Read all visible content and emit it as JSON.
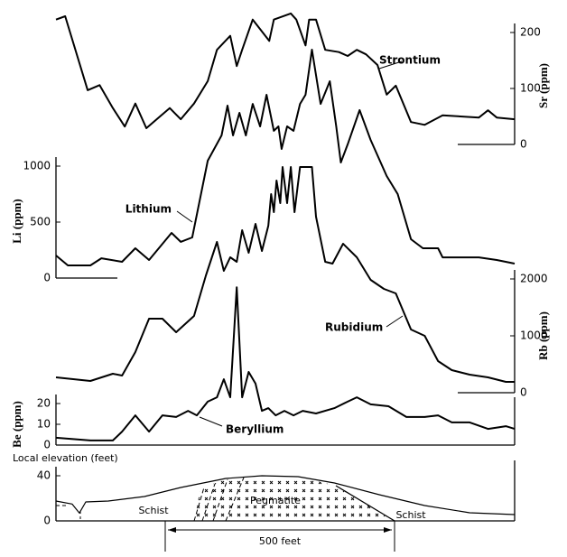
{
  "chart_data": [
    {
      "type": "line",
      "y_label": "Sr (ppm)",
      "y_axis": "right",
      "x": [
        0,
        20,
        69,
        95,
        124,
        150,
        173,
        197,
        248,
        272,
        301,
        331,
        351,
        380,
        394,
        406,
        429,
        465,
        475,
        512,
        524,
        544,
        552,
        567,
        587,
        617,
        636,
        656,
        676,
        701,
        721,
        741,
        774,
        804,
        843,
        922,
        942,
        961,
        1000
      ],
      "xlim": [
        0,
        1000
      ],
      "ylim": [
        0,
        240
      ],
      "yticks": [
        0,
        100,
        200
      ],
      "series": [
        {
          "name": "Strontium",
          "color": "#000000",
          "values": [
            223,
            229,
            97,
            106,
            65,
            32,
            73,
            29,
            65,
            45,
            73,
            113,
            169,
            194,
            140,
            169,
            223,
            185,
            223,
            234,
            223,
            177,
            223,
            223,
            169,
            165,
            158,
            169,
            161,
            142,
            89,
            105,
            40,
            35,
            52,
            48,
            61,
            48,
            45
          ]
        }
      ]
    },
    {
      "type": "line",
      "y_label": "Li (ppm)",
      "y_axis": "left",
      "x": [
        0,
        26,
        75,
        99,
        144,
        173,
        203,
        252,
        272,
        297,
        331,
        361,
        374,
        386,
        400,
        414,
        429,
        445,
        459,
        475,
        485,
        492,
        504,
        518,
        532,
        544,
        558,
        577,
        597,
        611,
        621,
        636,
        662,
        686,
        721,
        745,
        774,
        800,
        833,
        843,
        922,
        961,
        1000
      ],
      "xlim": [
        0,
        1000
      ],
      "ylim": [
        0,
        2100
      ],
      "yticks": [
        0,
        500,
        1000
      ],
      "series": [
        {
          "name": "Lithium",
          "color": "#000000",
          "values": [
            202,
            113,
            113,
            177,
            145,
            266,
            161,
            403,
            323,
            363,
            1048,
            1274,
            1540,
            1274,
            1476,
            1274,
            1556,
            1355,
            1637,
            1315,
            1355,
            1153,
            1355,
            1315,
            1556,
            1637,
            2040,
            1556,
            1758,
            1355,
            1032,
            1194,
            1500,
            1234,
            911,
            750,
            347,
            266,
            266,
            185,
            185,
            161,
            129
          ]
        }
      ]
    },
    {
      "type": "line",
      "y_label": "Rb (ppm)",
      "y_axis": "right",
      "x": [
        0,
        75,
        124,
        144,
        173,
        203,
        232,
        262,
        301,
        327,
        351,
        366,
        380,
        394,
        406,
        420,
        435,
        449,
        463,
        469,
        475,
        481,
        489,
        494,
        504,
        512,
        520,
        532,
        558,
        567,
        587,
        603,
        626,
        656,
        686,
        715,
        741,
        774,
        804,
        833,
        863,
        902,
        942,
        981,
        1000
      ],
      "xlim": [
        0,
        1000
      ],
      "ylim": [
        0,
        4100
      ],
      "yticks": [
        0,
        1000,
        2000
      ],
      "series": [
        {
          "name": "Rubidium",
          "color": "#000000",
          "values": [
            270,
            206,
            333,
            302,
            714,
            1302,
            1302,
            1063,
            1349,
            2063,
            2651,
            2143,
            2381,
            2302,
            2857,
            2460,
            2968,
            2492,
            2937,
            3492,
            3175,
            3730,
            3333,
            3968,
            3333,
            3968,
            3175,
            3968,
            3968,
            3095,
            2302,
            2270,
            2619,
            2381,
            1984,
            1825,
            1746,
            1111,
            1000,
            556,
            397,
            317,
            270,
            190,
            190
          ]
        }
      ]
    },
    {
      "type": "line",
      "y_label": "Be (ppm)",
      "y_axis": "left",
      "x": [
        0,
        75,
        124,
        144,
        173,
        203,
        232,
        262,
        288,
        307,
        331,
        351,
        366,
        380,
        394,
        406,
        420,
        435,
        449,
        463,
        479,
        498,
        518,
        538,
        567,
        607,
        636,
        656,
        686,
        725,
        764,
        804,
        833,
        863,
        902,
        942,
        981,
        1000
      ],
      "xlim": [
        0,
        1000
      ],
      "ylim": [
        0,
        80
      ],
      "yticks": [
        0,
        10,
        20
      ],
      "series": [
        {
          "name": "Beryllium",
          "color": "#000000",
          "values": [
            3.5,
            2.2,
            2.2,
            6.5,
            14.3,
            6.5,
            14.3,
            13.5,
            16.5,
            14.3,
            20.9,
            23,
            31.7,
            23,
            76,
            23,
            35.2,
            29.6,
            16.5,
            17.8,
            14.3,
            16.5,
            14.3,
            16.5,
            15.2,
            17.8,
            20.9,
            23,
            19.6,
            18.7,
            13.5,
            13.5,
            14.3,
            10.9,
            10.9,
            7.8,
            9.1,
            7.8
          ]
        }
      ]
    },
    {
      "type": "section",
      "y_label": "Local elevation (feet)",
      "y_axis": "left",
      "x": [
        0,
        35,
        51,
        65,
        114,
        193,
        272,
        370,
        449,
        528,
        607,
        705,
        804,
        902,
        1000
      ],
      "xlim": [
        0,
        1000
      ],
      "ylim": [
        0,
        45
      ],
      "yticks": [
        0,
        40
      ],
      "series": [
        {
          "color": "#000000",
          "values": [
            17.6,
            15,
            7,
            16.8,
            17.6,
            21.6,
            29.6,
            37.6,
            40,
            39.2,
            33.6,
            23.2,
            13.6,
            7.2,
            5.6
          ]
        }
      ],
      "annotations": [
        "Schist",
        "Pegmatite",
        "Schist"
      ],
      "scale_bar": "500 feet"
    }
  ]
}
